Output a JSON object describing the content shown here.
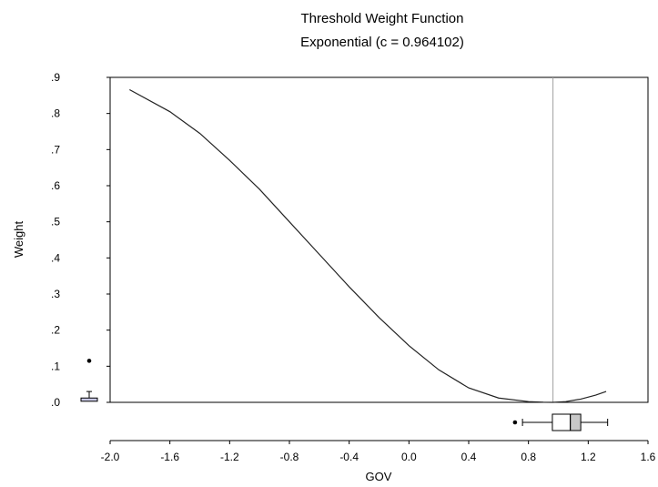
{
  "chart_data": {
    "type": "line",
    "title": "Threshold Weight Function",
    "subtitle": "Exponential (c = 0.964102)",
    "xlabel": "GOV",
    "ylabel": "Weight",
    "xlim": [
      -2.0,
      1.6
    ],
    "ylim": [
      0.0,
      0.9
    ],
    "threshold_c": 0.964102,
    "x_ticks": [
      "-2.0",
      "-1.6",
      "-1.2",
      "-0.8",
      "-0.4",
      "0.0",
      "0.4",
      "0.8",
      "1.2",
      "1.6"
    ],
    "y_ticks": [
      ".0",
      ".1",
      ".2",
      ".3",
      ".4",
      ".5",
      ".6",
      ".7",
      ".8",
      ".9"
    ],
    "series": [
      {
        "x": [
          -1.87,
          -1.6,
          -1.4,
          -1.2,
          -1.0,
          -0.8,
          -0.6,
          -0.4,
          -0.2,
          0.0,
          0.2,
          0.4,
          0.6,
          0.8,
          0.9,
          0.964,
          1.05,
          1.15,
          1.25,
          1.32
        ],
        "y": [
          0.866,
          0.805,
          0.745,
          0.67,
          0.59,
          0.5,
          0.41,
          0.32,
          0.235,
          0.157,
          0.09,
          0.04,
          0.012,
          0.002,
          0.0004,
          0.0,
          0.002,
          0.009,
          0.02,
          0.03
        ]
      }
    ],
    "x_boxplot": {
      "min": 0.76,
      "q1": 0.96,
      "median": 1.08,
      "q3": 1.15,
      "max": 1.33,
      "outliers": [
        0.71
      ]
    },
    "y_boxplot": {
      "min": 0.0,
      "q1": 0.003,
      "median": 0.006,
      "q3": 0.012,
      "max": 0.03,
      "outliers": [
        0.115
      ]
    }
  }
}
